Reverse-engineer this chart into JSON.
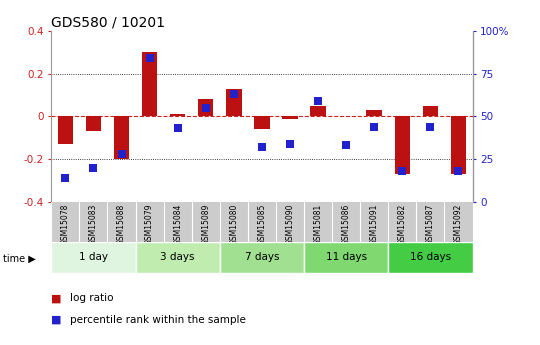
{
  "title": "GDS580 / 10201",
  "samples": [
    "GSM15078",
    "GSM15083",
    "GSM15088",
    "GSM15079",
    "GSM15084",
    "GSM15089",
    "GSM15080",
    "GSM15085",
    "GSM15090",
    "GSM15081",
    "GSM15086",
    "GSM15091",
    "GSM15082",
    "GSM15087",
    "GSM15092"
  ],
  "log_ratio": [
    -0.13,
    -0.07,
    -0.2,
    0.3,
    0.01,
    0.08,
    0.13,
    -0.06,
    -0.01,
    0.05,
    0.0,
    0.03,
    -0.27,
    0.05,
    -0.27
  ],
  "percentile_rank": [
    14,
    20,
    28,
    84,
    43,
    55,
    63,
    32,
    34,
    59,
    33,
    44,
    18,
    44,
    18
  ],
  "groups": [
    {
      "label": "1 day",
      "count": 3,
      "color": "#e0f5e0"
    },
    {
      "label": "3 days",
      "count": 3,
      "color": "#c0ecb0"
    },
    {
      "label": "7 days",
      "count": 3,
      "color": "#a0e090"
    },
    {
      "label": "11 days",
      "count": 3,
      "color": "#80d870"
    },
    {
      "label": "16 days",
      "count": 3,
      "color": "#44cc44"
    }
  ],
  "ylim_left": [
    -0.4,
    0.4
  ],
  "ylim_right": [
    0,
    100
  ],
  "bar_color": "#bb1111",
  "dot_color": "#2222cc",
  "title_fontsize": 10,
  "axis_label_color_left": "#cc2222",
  "axis_label_color_right": "#2222cc",
  "zero_line_color": "#cc2222",
  "background_color": "#ffffff",
  "header_bg": "#cccccc",
  "header_border": "#aaaaaa"
}
